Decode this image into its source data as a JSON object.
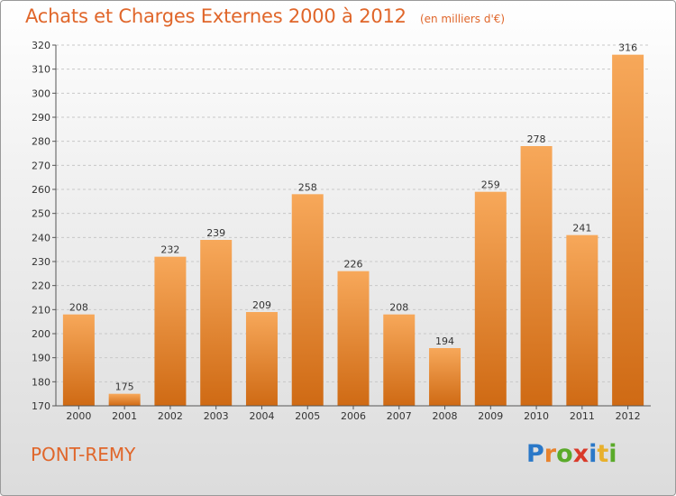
{
  "header": {
    "title": "Achats et Charges Externes 2000 à 2012",
    "subtitle": "(en milliers d'€)"
  },
  "footer": {
    "city": "PONT-REMY",
    "logo_letters": [
      {
        "ch": "P",
        "color": "#2a78c8"
      },
      {
        "ch": "r",
        "color": "#e8822c"
      },
      {
        "ch": "o",
        "color": "#5aaa2a"
      },
      {
        "ch": "x",
        "color": "#d93a2a"
      },
      {
        "ch": "i",
        "color": "#2a78c8"
      },
      {
        "ch": "t",
        "color": "#e8b02c"
      },
      {
        "ch": "i",
        "color": "#5aaa2a"
      }
    ]
  },
  "chart_data": {
    "type": "bar",
    "title": "Achats et Charges Externes 2000 à 2012",
    "subtitle": "(en milliers d'€)",
    "xlabel": "",
    "ylabel": "",
    "categories": [
      "2000",
      "2001",
      "2002",
      "2003",
      "2004",
      "2005",
      "2006",
      "2007",
      "2008",
      "2009",
      "2010",
      "2011",
      "2012"
    ],
    "values": [
      208,
      175,
      232,
      239,
      209,
      258,
      226,
      208,
      194,
      259,
      278,
      241,
      316
    ],
    "ylim": [
      170,
      320
    ],
    "yticks": [
      170,
      180,
      190,
      200,
      210,
      220,
      230,
      240,
      250,
      260,
      270,
      280,
      290,
      300,
      310,
      320
    ],
    "grid": true,
    "data_labels": true,
    "colors": {
      "bar_top": "#f7a85a",
      "bar_bottom": "#cf6a14",
      "title": "#e0662a",
      "axis": "#555555",
      "grid": "#c8c8c8"
    }
  }
}
